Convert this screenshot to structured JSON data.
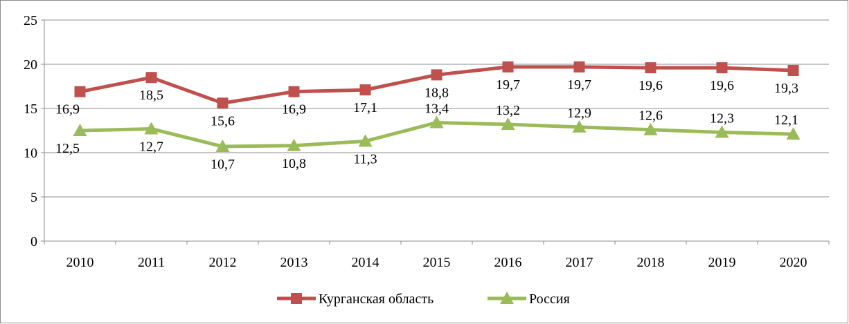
{
  "chart_data": {
    "type": "line",
    "title": "",
    "xlabel": "",
    "ylabel": "",
    "categories": [
      "2010",
      "2011",
      "2012",
      "2013",
      "2014",
      "2015",
      "2016",
      "2017",
      "2018",
      "2019",
      "2020"
    ],
    "ylim": [
      0,
      25
    ],
    "yticks": [
      "0",
      "5",
      "10",
      "15",
      "20",
      "25"
    ],
    "grid": true,
    "legend": "bottom",
    "series": [
      {
        "name": "Курганская область",
        "values": [
          16.9,
          18.5,
          15.6,
          16.9,
          17.1,
          18.8,
          19.7,
          19.7,
          19.6,
          19.6,
          19.3
        ],
        "labels": [
          "16,9",
          "18,5",
          "15,6",
          "16,9",
          "17,1",
          "18,8",
          "19,7",
          "19,7",
          "19,6",
          "19,6",
          "19,3"
        ],
        "color": "#c0504d",
        "marker": "square"
      },
      {
        "name": "Россия",
        "values": [
          12.5,
          12.7,
          10.7,
          10.8,
          11.3,
          13.4,
          13.2,
          12.9,
          12.6,
          12.3,
          12.1
        ],
        "labels": [
          "12,5",
          "12,7",
          "10,7",
          "10,8",
          "11,3",
          "13,4",
          "13,2",
          "12,9",
          "12,6",
          "12,3",
          "12,1"
        ],
        "color": "#9bbb59",
        "marker": "triangle"
      }
    ]
  }
}
